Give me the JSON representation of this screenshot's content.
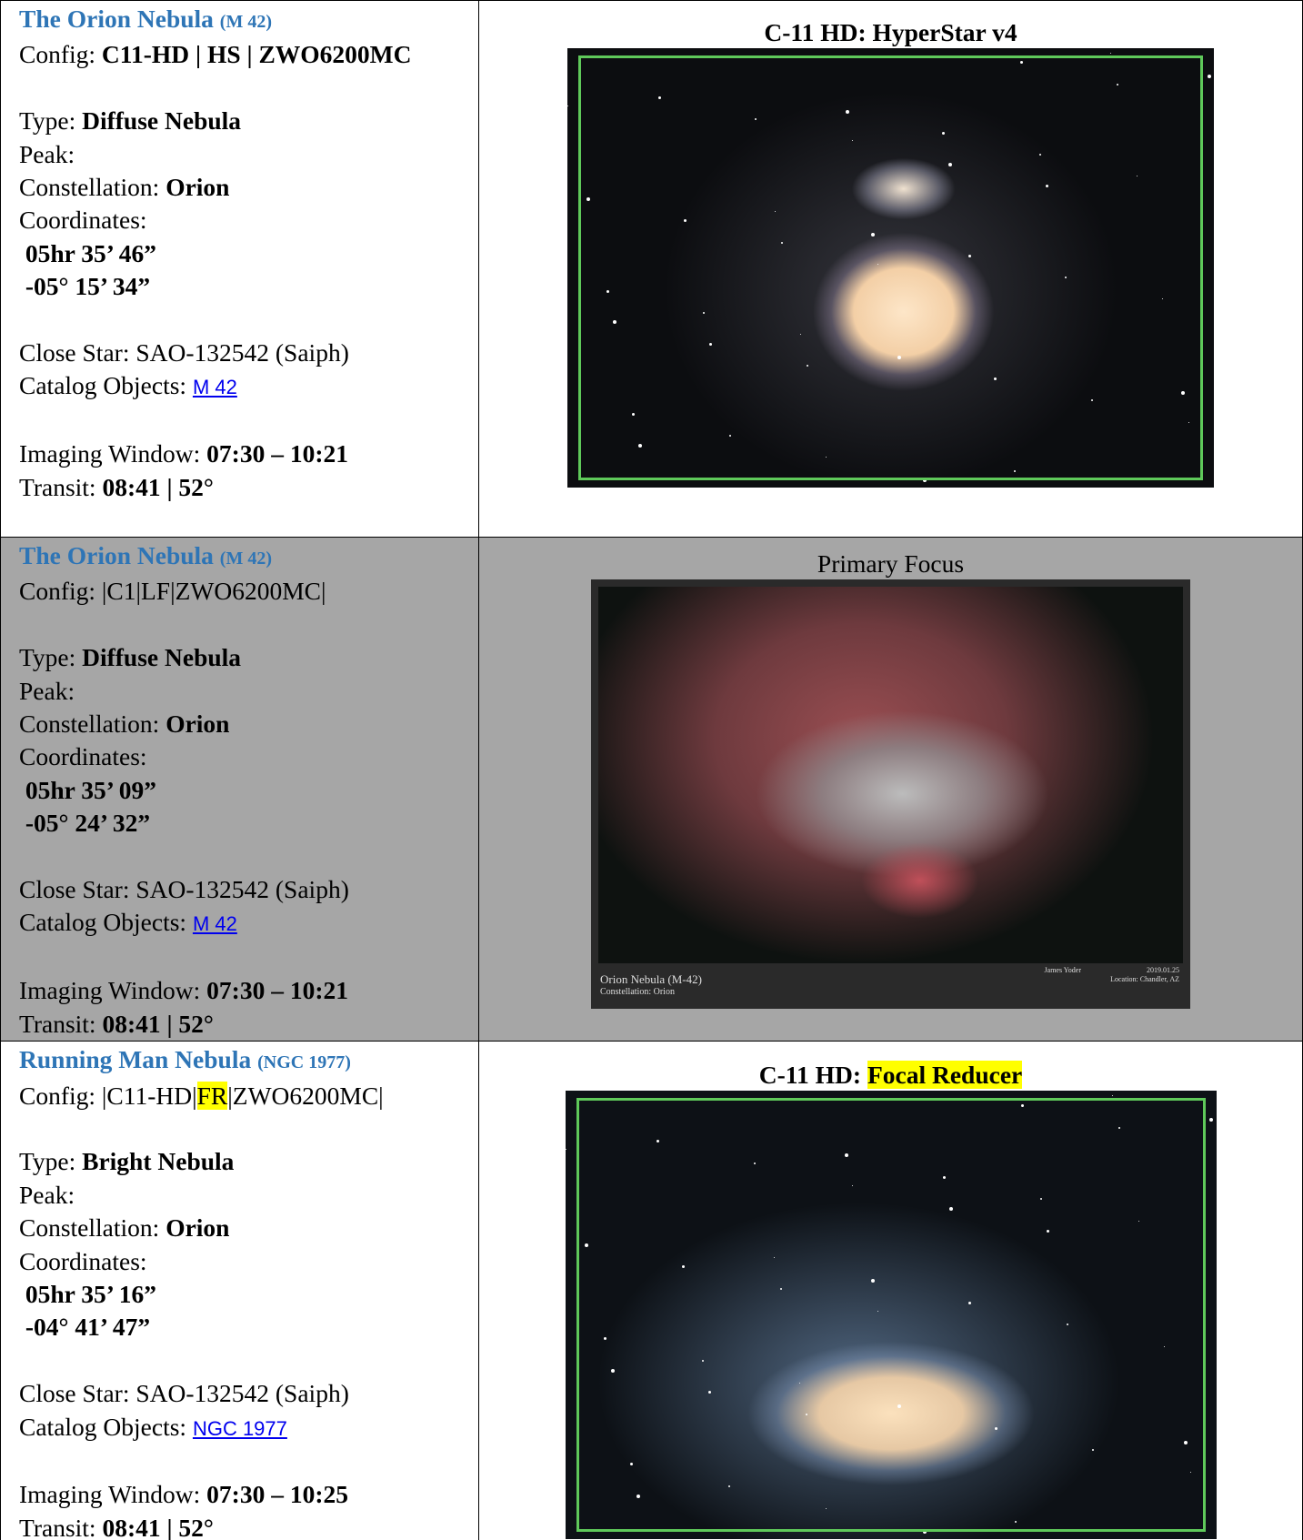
{
  "rows": [
    {
      "title": "The Orion Nebula",
      "catalog": "(M 42)",
      "config_label": "Config:",
      "config": [
        "C11-HD | HS | ZWO6200MC"
      ],
      "type_label": "Type:",
      "type": "Diffuse Nebula",
      "peak_label": "Peak:",
      "constellation_label": "Constellation:",
      "constellation": "Orion",
      "coordinates_label": "Coordinates:",
      "ra": "05hr 35’ 46”",
      "dec": "-05° 15’ 34”",
      "close_star_label": "Close Star:",
      "close_star": "SAO-132542 (Saiph)",
      "catalog_objects_label": "Catalog Objects:",
      "catalog_objects": "M 42",
      "imaging_window_label": "Imaging Window:",
      "imaging_window": "07:30 – 10:21",
      "transit_label": "Transit:",
      "transit": "08:41 | 52°",
      "caption": [
        "C-11 HD: HyperStar v4"
      ]
    },
    {
      "title": "The Orion Nebula",
      "catalog": "(M 42)",
      "config_label": "Config:",
      "config": [
        "|C1|LF|ZWO6200MC|"
      ],
      "type_label": "Type:",
      "type": "Diffuse Nebula",
      "peak_label": "Peak:",
      "constellation_label": "Constellation:",
      "constellation": "Orion",
      "coordinates_label": "Coordinates:",
      "ra": "05hr 35’ 09”",
      "dec": "-05° 24’ 32”",
      "close_star_label": "Close Star:",
      "close_star": "SAO-132542 (Saiph)",
      "catalog_objects_label": "Catalog Objects:",
      "catalog_objects": "M 42",
      "imaging_window_label": "Imaging Window:",
      "imaging_window": "07:30 – 10:21",
      "transit_label": "Transit:",
      "transit": "08:41 | 52°",
      "caption": [
        "Primary Focus"
      ],
      "image_text": {
        "name": "Orion Nebula (M-42)",
        "constellation": "Constellation: Orion",
        "author": "James Yoder",
        "date": "2019.01.25",
        "location": "Location: Chandler, AZ"
      }
    },
    {
      "title": "Running Man Nebula",
      "catalog": "(NGC 1977)",
      "config_label": "Config:",
      "config": [
        "|C11-HD|",
        "FR",
        "|ZWO6200MC|"
      ],
      "type_label": "Type:",
      "type": "Bright Nebula",
      "peak_label": "Peak:",
      "constellation_label": "Constellation:",
      "constellation": "Orion",
      "coordinates_label": "Coordinates:",
      "ra": "05hr 35’ 16”",
      "dec": "-04° 41’ 47”",
      "close_star_label": "Close Star:",
      "close_star": "SAO-132542 (Saiph)",
      "catalog_objects_label": "Catalog Objects:",
      "catalog_objects": "NGC 1977",
      "imaging_window_label": "Imaging Window:",
      "imaging_window": "07:30 – 10:25",
      "transit_label": "Transit:",
      "transit": "08:41 | 52°",
      "caption": [
        "C-11 HD: ",
        "Focal Reducer"
      ]
    }
  ]
}
